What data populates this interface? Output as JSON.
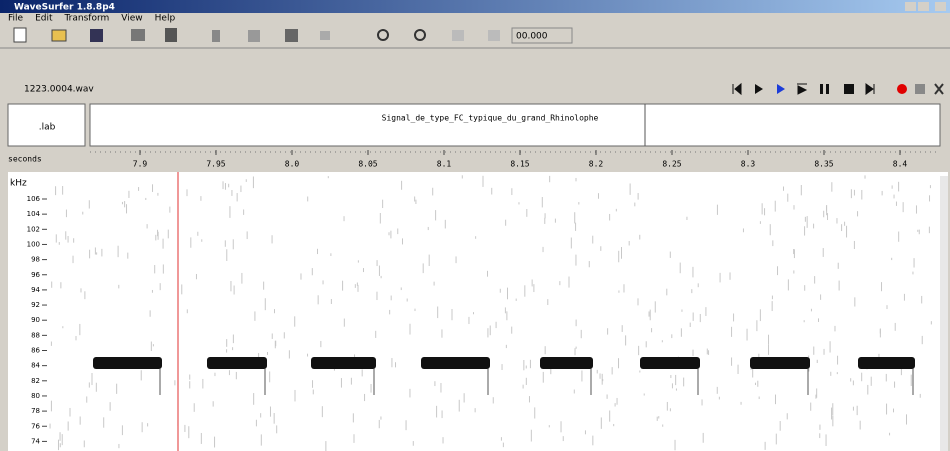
{
  "window": {
    "title": "WaveSurfer 1.8.8p4"
  },
  "menu": [
    "File",
    "Edit",
    "Transform",
    "View",
    "Help"
  ],
  "toolbar": {
    "time_field": "00.000"
  },
  "sound": {
    "file": "1223.0004.wav"
  },
  "labels": {
    "file": ".lab",
    "segment": "Signal_de_type_FC_typique_du_grand_Rhinolophe"
  },
  "time_axis": {
    "unit": "seconds",
    "ticks": [
      "7.9",
      "7.95",
      "8.0",
      "8.05",
      "8.1",
      "8.15",
      "8.2",
      "8.25",
      "8.3",
      "8.35",
      "8.4"
    ]
  },
  "freq_axis": {
    "unit": "kHz",
    "ticks": [
      "106",
      "104",
      "102",
      "100",
      "98",
      "96",
      "94",
      "92",
      "90",
      "88",
      "86",
      "84",
      "82",
      "80",
      "78",
      "76",
      "74"
    ]
  }
}
